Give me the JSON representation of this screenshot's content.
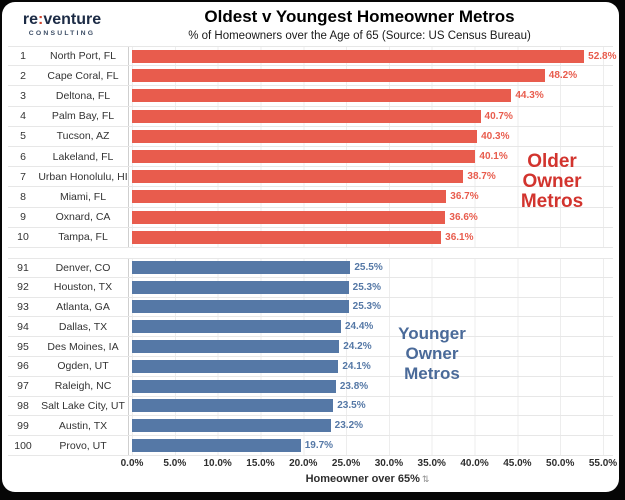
{
  "logo": {
    "brand_pre": "re",
    "brand_colon": ":",
    "brand_post": "venture",
    "tagline": "CONSULTING"
  },
  "header": {
    "title": "Oldest v Youngest Homeowner Metros",
    "subtitle": "% of Homeowners over the Age of 65 (Source: US Census Bureau)"
  },
  "annotations": {
    "older_lines": [
      "Older",
      "Owner",
      "Metros"
    ],
    "younger_lines": [
      "Younger",
      "Owner",
      "Metros"
    ]
  },
  "colors": {
    "older_bar": "#e85c4d",
    "younger_bar": "#5578a6",
    "older_annotation": "#d2342e",
    "younger_annotation": "#4a6a99",
    "logo_navy": "#1c2b45",
    "logo_accent": "#d0452f"
  },
  "icons": {
    "axis_sort_icon": "⇅"
  },
  "chart_data": {
    "type": "bar",
    "orientation": "horizontal",
    "title": "Oldest v Youngest Homeowner Metros",
    "subtitle": "% of Homeowners over the Age of 65 (Source: US Census Bureau)",
    "xlabel": "Homeowner over 65%",
    "xlim": [
      0,
      55
    ],
    "x_tick_step_pct": 5,
    "x_ticks": [
      "0.0%",
      "5.0%",
      "10.0%",
      "15.0%",
      "20.0%",
      "25.0%",
      "30.0%",
      "35.0%",
      "40.0%",
      "45.0%",
      "50.0%",
      "55.0%"
    ],
    "grid": true,
    "legend_position": "none",
    "series": [
      {
        "name": "Older Owner Metros",
        "color": "#e85c4d",
        "rows": [
          {
            "rank": "1",
            "metro": "North Port, FL",
            "value": 52.8,
            "label": "52.8%"
          },
          {
            "rank": "2",
            "metro": "Cape Coral, FL",
            "value": 48.2,
            "label": "48.2%"
          },
          {
            "rank": "3",
            "metro": "Deltona, FL",
            "value": 44.3,
            "label": "44.3%"
          },
          {
            "rank": "4",
            "metro": "Palm Bay, FL",
            "value": 40.7,
            "label": "40.7%"
          },
          {
            "rank": "5",
            "metro": "Tucson, AZ",
            "value": 40.3,
            "label": "40.3%"
          },
          {
            "rank": "6",
            "metro": "Lakeland, FL",
            "value": 40.1,
            "label": "40.1%"
          },
          {
            "rank": "7",
            "metro": "Urban Honolulu, HI",
            "value": 38.7,
            "label": "38.7%"
          },
          {
            "rank": "8",
            "metro": "Miami, FL",
            "value": 36.7,
            "label": "36.7%"
          },
          {
            "rank": "9",
            "metro": "Oxnard, CA",
            "value": 36.6,
            "label": "36.6%"
          },
          {
            "rank": "10",
            "metro": "Tampa, FL",
            "value": 36.1,
            "label": "36.1%"
          }
        ]
      },
      {
        "name": "Younger Owner Metros",
        "color": "#5578a6",
        "rows": [
          {
            "rank": "91",
            "metro": "Denver, CO",
            "value": 25.5,
            "label": "25.5%"
          },
          {
            "rank": "92",
            "metro": "Houston, TX",
            "value": 25.3,
            "label": "25.3%"
          },
          {
            "rank": "93",
            "metro": "Atlanta, GA",
            "value": 25.3,
            "label": "25.3%"
          },
          {
            "rank": "94",
            "metro": "Dallas, TX",
            "value": 24.4,
            "label": "24.4%"
          },
          {
            "rank": "95",
            "metro": "Des Moines, IA",
            "value": 24.2,
            "label": "24.2%"
          },
          {
            "rank": "96",
            "metro": "Ogden, UT",
            "value": 24.1,
            "label": "24.1%"
          },
          {
            "rank": "97",
            "metro": "Raleigh, NC",
            "value": 23.8,
            "label": "23.8%"
          },
          {
            "rank": "98",
            "metro": "Salt Lake City, UT",
            "value": 23.5,
            "label": "23.5%"
          },
          {
            "rank": "99",
            "metro": "Austin, TX",
            "value": 23.2,
            "label": "23.2%"
          },
          {
            "rank": "100",
            "metro": "Provo, UT",
            "value": 19.7,
            "label": "19.7%"
          }
        ]
      }
    ]
  }
}
